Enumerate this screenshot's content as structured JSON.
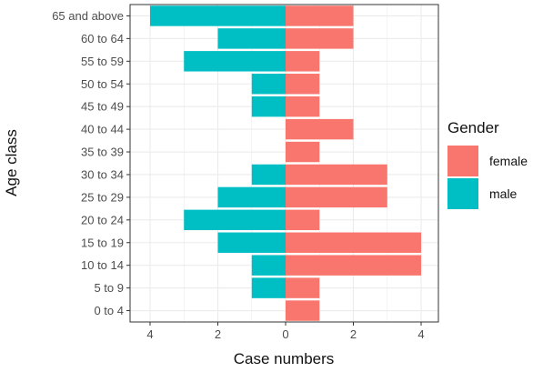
{
  "chart_data": {
    "type": "bar",
    "orientation": "horizontal",
    "layout": "population-pyramid",
    "categories": [
      "65 and above",
      "60 to 64",
      "55 to 59",
      "50 to 54",
      "45 to 49",
      "40 to 44",
      "35 to 39",
      "30 to 34",
      "25 to 29",
      "20 to 24",
      "15 to 19",
      "10 to 14",
      "5 to 9",
      "0 to 4"
    ],
    "series": [
      {
        "name": "female",
        "values": [
          2,
          2,
          1,
          1,
          1,
          2,
          1,
          3,
          3,
          1,
          4,
          4,
          1,
          1
        ],
        "color": "#F8766D",
        "side": "right"
      },
      {
        "name": "male",
        "values": [
          4,
          2,
          3,
          1,
          1,
          0,
          0,
          1,
          2,
          3,
          2,
          1,
          1,
          0
        ],
        "color": "#00BFC4",
        "side": "left"
      }
    ],
    "xlabel": "Case numbers",
    "ylabel": "Age class",
    "xlim": [
      -4,
      4
    ],
    "x_ticks": [
      -4,
      -2,
      0,
      2,
      4
    ],
    "x_tick_labels": [
      "4",
      "2",
      "0",
      "2",
      "4"
    ],
    "legend": {
      "title": "Gender",
      "position": "right"
    },
    "grid": true
  },
  "colors": {
    "female": "#F8766D",
    "male": "#00BFC4",
    "grid": "#ebebeb",
    "panel_border": "#333333",
    "background": "#ffffff"
  }
}
